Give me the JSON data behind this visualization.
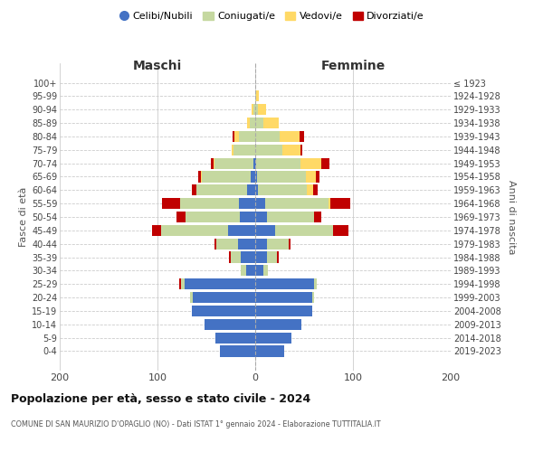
{
  "age_groups": [
    "0-4",
    "5-9",
    "10-14",
    "15-19",
    "20-24",
    "25-29",
    "30-34",
    "35-39",
    "40-44",
    "45-49",
    "50-54",
    "55-59",
    "60-64",
    "65-69",
    "70-74",
    "75-79",
    "80-84",
    "85-89",
    "90-94",
    "95-99",
    "100+"
  ],
  "birth_years": [
    "2019-2023",
    "2014-2018",
    "2009-2013",
    "2004-2008",
    "1999-2003",
    "1994-1998",
    "1989-1993",
    "1984-1988",
    "1979-1983",
    "1974-1978",
    "1969-1973",
    "1964-1968",
    "1959-1963",
    "1954-1958",
    "1949-1953",
    "1944-1948",
    "1939-1943",
    "1934-1938",
    "1929-1933",
    "1924-1928",
    "≤ 1923"
  ],
  "males": {
    "celibi": [
      36,
      41,
      52,
      65,
      64,
      72,
      9,
      15,
      18,
      28,
      16,
      17,
      8,
      5,
      2,
      0,
      0,
      0,
      0,
      0,
      0
    ],
    "coniugati": [
      0,
      0,
      0,
      0,
      3,
      4,
      6,
      10,
      22,
      68,
      55,
      60,
      52,
      50,
      40,
      22,
      17,
      6,
      2,
      0,
      0
    ],
    "vedovi": [
      0,
      0,
      0,
      0,
      0,
      0,
      0,
      0,
      0,
      0,
      0,
      0,
      0,
      1,
      1,
      2,
      4,
      2,
      2,
      0,
      0
    ],
    "divorziati": [
      0,
      0,
      0,
      0,
      0,
      2,
      0,
      2,
      2,
      10,
      10,
      18,
      5,
      2,
      2,
      0,
      2,
      0,
      0,
      0,
      0
    ]
  },
  "females": {
    "nubili": [
      30,
      37,
      47,
      58,
      58,
      60,
      8,
      12,
      12,
      20,
      12,
      10,
      3,
      2,
      1,
      0,
      0,
      0,
      0,
      0,
      0
    ],
    "coniugate": [
      0,
      0,
      0,
      0,
      2,
      3,
      5,
      10,
      22,
      60,
      48,
      65,
      50,
      50,
      45,
      28,
      25,
      8,
      3,
      1,
      0
    ],
    "vedove": [
      0,
      0,
      0,
      0,
      0,
      0,
      0,
      0,
      0,
      0,
      0,
      2,
      6,
      10,
      22,
      18,
      20,
      16,
      8,
      3,
      0
    ],
    "divorziate": [
      0,
      0,
      0,
      0,
      0,
      0,
      0,
      2,
      2,
      15,
      8,
      20,
      5,
      4,
      8,
      2,
      5,
      0,
      0,
      0,
      0
    ]
  },
  "colors": {
    "celibi": "#4472C4",
    "coniugati": "#C5D8A0",
    "vedovi": "#FFD966",
    "divorziati": "#C00000"
  },
  "title": "Popolazione per età, sesso e stato civile - 2024",
  "subtitle": "COMUNE DI SAN MAURIZIO D'OPAGLIO (NO) - Dati ISTAT 1° gennaio 2024 - Elaborazione TUTTITALIA.IT",
  "xlabel_left": "Maschi",
  "xlabel_right": "Femmine",
  "ylabel_left": "Fasce di età",
  "ylabel_right": "Anni di nascita",
  "xlim": 200,
  "legend_labels": [
    "Celibi/Nubili",
    "Coniugati/e",
    "Vedovi/e",
    "Divorziati/e"
  ],
  "background_color": "#ffffff"
}
